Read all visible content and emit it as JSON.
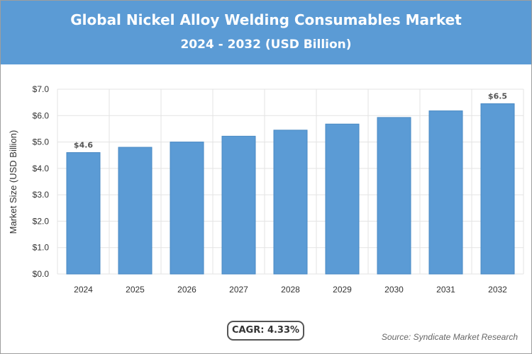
{
  "header": {
    "title": "Global Nickel Alloy Welding Consumables Market",
    "subtitle": "2024 - 2032 (USD Billion)"
  },
  "cagr_label": "CAGR: 4.33%",
  "source": "Source: Syndicate Market Research",
  "colors": {
    "header_bg": "#5b9bd5",
    "bar": "#5b9bd5",
    "bar_border": "#4a8ac4"
  },
  "chart_data": {
    "type": "bar",
    "title": "Global Nickel Alloy Welding Consumables Market",
    "subtitle": "2024 - 2032 (USD Billion)",
    "xlabel": "",
    "ylabel": "Market Size (USD Billion)",
    "ylim": [
      0,
      7
    ],
    "yticks": [
      "$0.0",
      "$1.0",
      "$2.0",
      "$3.0",
      "$4.0",
      "$5.0",
      "$6.0",
      "$7.0"
    ],
    "categories": [
      "2024",
      "2025",
      "2026",
      "2027",
      "2028",
      "2029",
      "2030",
      "2031",
      "2032"
    ],
    "values": [
      4.6,
      4.8,
      5.0,
      5.22,
      5.45,
      5.68,
      5.93,
      6.18,
      6.45
    ],
    "data_labels": [
      {
        "index": 0,
        "text": "$4.6"
      },
      {
        "index": 8,
        "text": "$6.5"
      }
    ],
    "grid": true,
    "legend": "none"
  }
}
